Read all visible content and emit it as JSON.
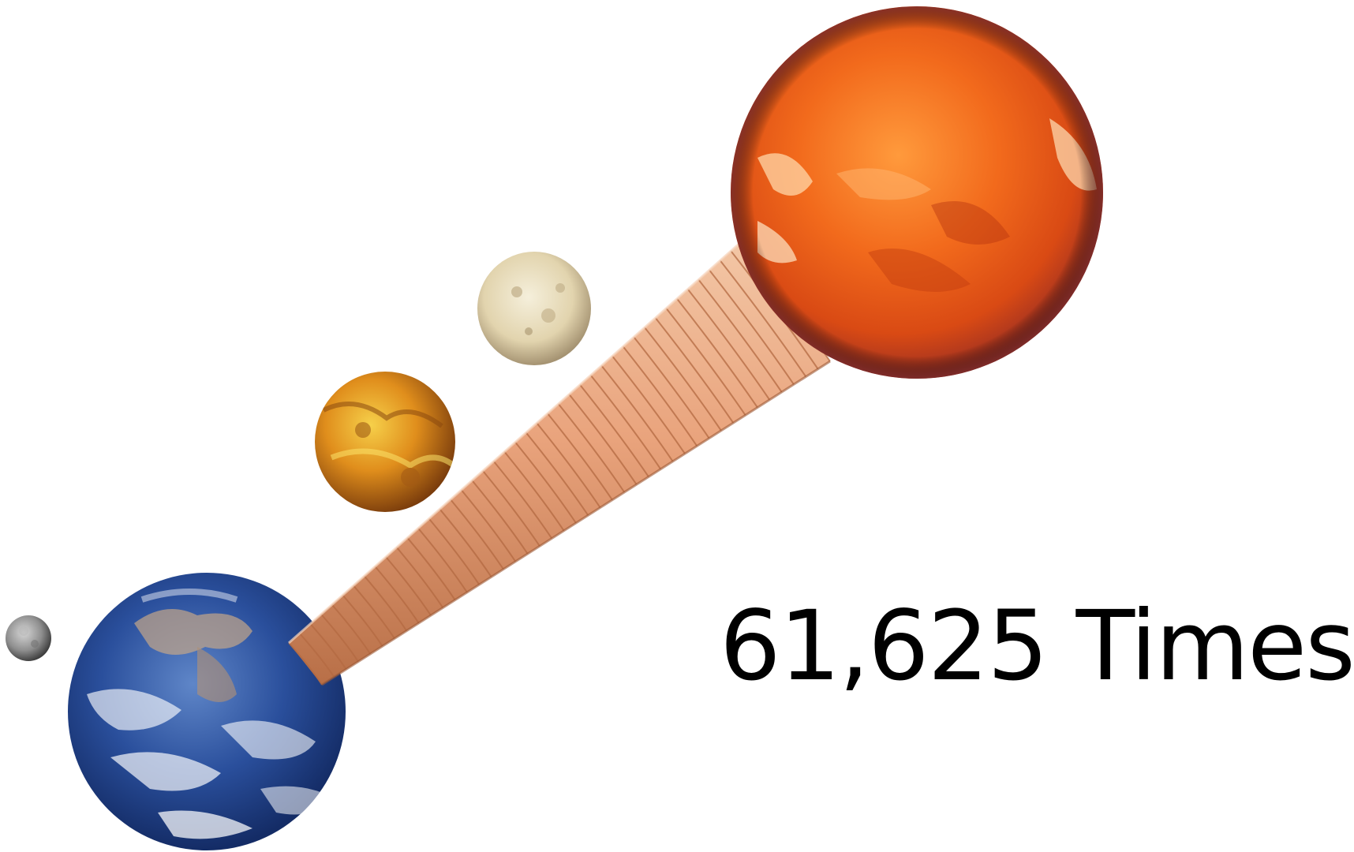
{
  "caption": {
    "text": "61,625 Times"
  },
  "icons": {
    "moon": "moon-icon",
    "earth": "earth-icon",
    "venus": "venus-icon",
    "mercury": "mercury-icon",
    "sun": "sun-icon",
    "tube": "coin-stack-tube"
  },
  "colors": {
    "background": "#ffffff",
    "sun_core": "#f26a1c",
    "sun_rim": "#8b2b2b",
    "tube": "#e8a27c",
    "tube_band": "#c97a50",
    "earth_ocean": "#1d3f8f",
    "venus": "#e7a023",
    "mercury": "#e6dcc0",
    "moon": "#9a9a9a",
    "text": "#000000"
  }
}
